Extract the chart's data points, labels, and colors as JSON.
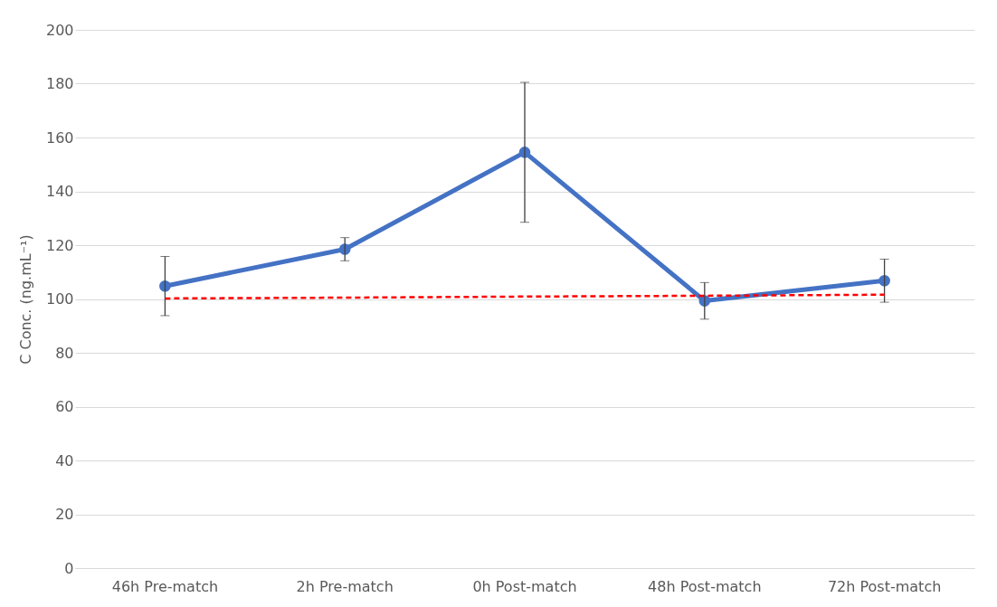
{
  "chart_data": {
    "type": "line",
    "ylabel": "C Conc. (ng.mL⁻¹)",
    "categories": [
      "46h Pre-match",
      "2h Pre-match",
      "0h Post-match",
      "48h Post-match",
      "72h Post-match"
    ],
    "series": [
      {
        "color": "#4472c4",
        "values": [
          104.8,
          118.5,
          154.5,
          99.3,
          106.8
        ],
        "errors": [
          11,
          4.3,
          26,
          6.8,
          8
        ],
        "marker": "circle",
        "line_style": "solid"
      },
      {
        "color": "#ff0000",
        "values": [
          100.2,
          100.5,
          100.9,
          101.2,
          101.6
        ],
        "marker": "none",
        "line_style": "dashed"
      }
    ],
    "ylim": [
      0,
      200
    ],
    "yticks": [
      0,
      20,
      40,
      60,
      80,
      100,
      120,
      140,
      160,
      180,
      200
    ],
    "grid": "y"
  }
}
